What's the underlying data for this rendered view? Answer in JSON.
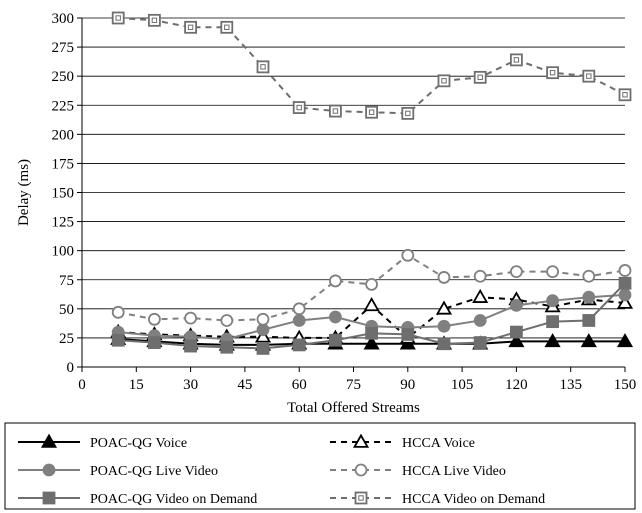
{
  "chart_data": {
    "type": "line",
    "xlabel": "Total Offered Streams",
    "ylabel": "Delay (ms)",
    "xlim": [
      0,
      150
    ],
    "ylim": [
      0,
      300
    ],
    "xticks": [
      0,
      15,
      30,
      45,
      60,
      75,
      90,
      105,
      120,
      135,
      150
    ],
    "yticks": [
      0,
      25,
      50,
      75,
      100,
      125,
      150,
      175,
      200,
      225,
      250,
      275,
      300
    ],
    "grid": "horizontal",
    "legend": "bottom",
    "x": [
      10,
      20,
      30,
      40,
      50,
      60,
      70,
      80,
      90,
      100,
      110,
      120,
      130,
      140,
      150
    ],
    "series": [
      {
        "name": "POAC-QG Voice",
        "style": "solid",
        "marker": "triangle",
        "filled": true,
        "color": "#000000",
        "values": [
          24,
          22,
          20,
          19,
          19,
          20,
          20,
          20,
          20,
          20,
          20,
          22,
          22,
          22,
          22
        ]
      },
      {
        "name": "HCCA Voice",
        "style": "dashed",
        "marker": "triangle",
        "filled": false,
        "color": "#000000",
        "values": [
          30,
          28,
          27,
          26,
          26,
          25,
          25,
          53,
          25,
          50,
          60,
          58,
          52,
          58,
          55
        ]
      },
      {
        "name": "POAC-QG Live Video",
        "style": "solid",
        "marker": "circle",
        "filled": true,
        "color": "#808080",
        "values": [
          30,
          27,
          26,
          24,
          32,
          40,
          43,
          35,
          34,
          35,
          40,
          53,
          57,
          60,
          62
        ]
      },
      {
        "name": "HCCA Live Video",
        "style": "dashed",
        "marker": "circle",
        "filled": false,
        "color": "#808080",
        "values": [
          47,
          41,
          42,
          40,
          41,
          50,
          74,
          71,
          96,
          77,
          78,
          82,
          82,
          78,
          83
        ]
      },
      {
        "name": "POAC-QG Video on Demand",
        "style": "solid",
        "marker": "square",
        "filled": true,
        "color": "#6e6e6e",
        "values": [
          23,
          21,
          18,
          17,
          16,
          19,
          23,
          29,
          28,
          20,
          21,
          30,
          39,
          40,
          72
        ]
      },
      {
        "name": "HCCA Video on Demand",
        "style": "dashed",
        "marker": "square",
        "filled": false,
        "color": "#6e6e6e",
        "values": [
          300,
          298,
          292,
          292,
          258,
          223,
          220,
          219,
          218,
          246,
          249,
          264,
          253,
          250,
          234
        ]
      }
    ]
  }
}
